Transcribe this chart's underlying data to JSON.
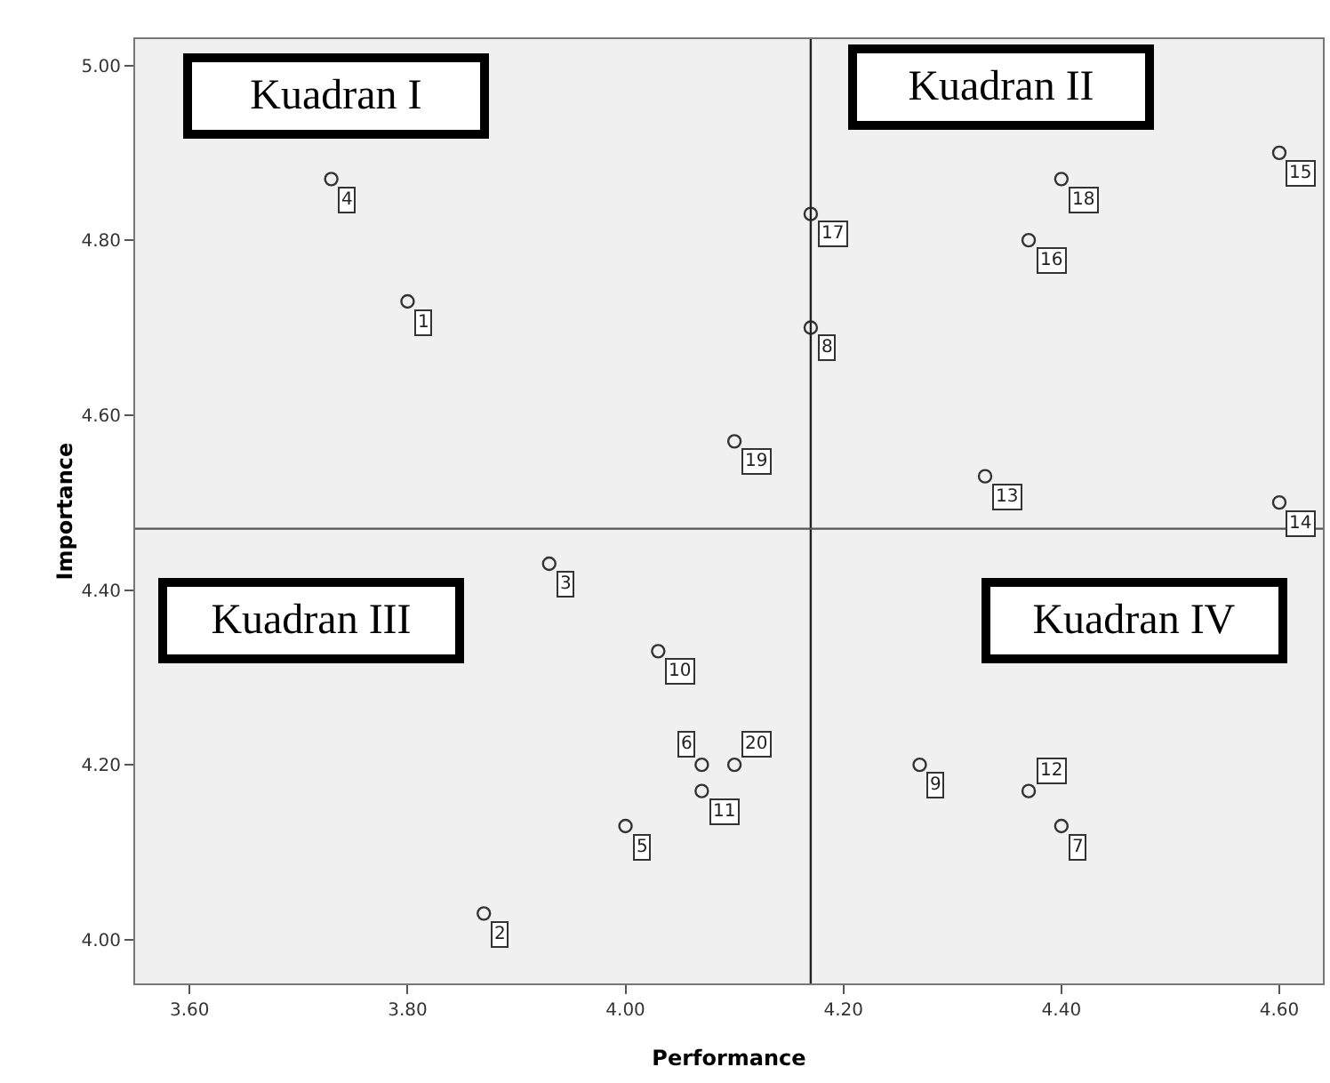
{
  "chart_data": {
    "type": "scatter",
    "xlabel": "Performance",
    "ylabel": "Importance",
    "series": [
      {
        "name": "1",
        "color": "#333333",
        "x": [
          3.8
        ],
        "values": [
          4.73
        ]
      },
      {
        "name": "2",
        "color": "#333333",
        "x": [
          3.87
        ],
        "values": [
          4.03
        ]
      },
      {
        "name": "3",
        "color": "#333333",
        "x": [
          3.93
        ],
        "values": [
          4.43
        ]
      },
      {
        "name": "4",
        "color": "#333333",
        "x": [
          3.73
        ],
        "values": [
          4.87
        ]
      },
      {
        "name": "5",
        "color": "#333333",
        "x": [
          4.0
        ],
        "values": [
          4.13
        ]
      },
      {
        "name": "6",
        "color": "#333333",
        "x": [
          4.07
        ],
        "values": [
          4.2
        ]
      },
      {
        "name": "7",
        "color": "#333333",
        "x": [
          4.4
        ],
        "values": [
          4.13
        ]
      },
      {
        "name": "8",
        "color": "#333333",
        "x": [
          4.17
        ],
        "values": [
          4.7
        ]
      },
      {
        "name": "9",
        "color": "#333333",
        "x": [
          4.27
        ],
        "values": [
          4.2
        ]
      },
      {
        "name": "10",
        "color": "#333333",
        "x": [
          4.03
        ],
        "values": [
          4.33
        ]
      },
      {
        "name": "11",
        "color": "#333333",
        "x": [
          4.07
        ],
        "values": [
          4.17
        ]
      },
      {
        "name": "12",
        "color": "#333333",
        "x": [
          4.37
        ],
        "values": [
          4.17
        ]
      },
      {
        "name": "13",
        "color": "#333333",
        "x": [
          4.33
        ],
        "values": [
          4.53
        ]
      },
      {
        "name": "14",
        "color": "#333333",
        "x": [
          4.6
        ],
        "values": [
          4.5
        ]
      },
      {
        "name": "15",
        "color": "#333333",
        "x": [
          4.6
        ],
        "values": [
          4.9
        ]
      },
      {
        "name": "16",
        "color": "#333333",
        "x": [
          4.37
        ],
        "values": [
          4.8
        ]
      },
      {
        "name": "17",
        "color": "#333333",
        "x": [
          4.17
        ],
        "values": [
          4.83
        ]
      },
      {
        "name": "18",
        "color": "#333333",
        "x": [
          4.4
        ],
        "values": [
          4.87
        ]
      },
      {
        "name": "19",
        "color": "#333333",
        "x": [
          4.1
        ],
        "values": [
          4.57
        ]
      },
      {
        "name": "20",
        "color": "#333333",
        "x": [
          4.1
        ],
        "values": [
          4.2
        ]
      }
    ],
    "marker": "circle",
    "grid": false,
    "xlim": [
      3.55,
      4.64
    ],
    "ylim": [
      3.95,
      5.03
    ],
    "xticks": [
      {
        "value": 3.6,
        "label": "3.60"
      },
      {
        "value": 3.8,
        "label": "3.80"
      },
      {
        "value": 4.0,
        "label": "4.00"
      },
      {
        "value": 4.2,
        "label": "4.20"
      },
      {
        "value": 4.4,
        "label": "4.40"
      },
      {
        "value": 4.6,
        "label": "4.60"
      }
    ],
    "yticks": [
      {
        "value": 4.0,
        "label": "4.00"
      },
      {
        "value": 4.2,
        "label": "4.20"
      },
      {
        "value": 4.4,
        "label": "4.40"
      },
      {
        "value": 4.6,
        "label": "4.60"
      },
      {
        "value": 4.8,
        "label": "4.80"
      },
      {
        "value": 5.0,
        "label": "5.00"
      }
    ],
    "ref_lines": [
      {
        "axis": "x",
        "value": 4.17
      },
      {
        "axis": "y",
        "value": 4.47
      }
    ],
    "annotations": [
      "Kuadran I",
      "Kuadran II",
      "Kuadran III",
      "Kuadran IV"
    ]
  }
}
